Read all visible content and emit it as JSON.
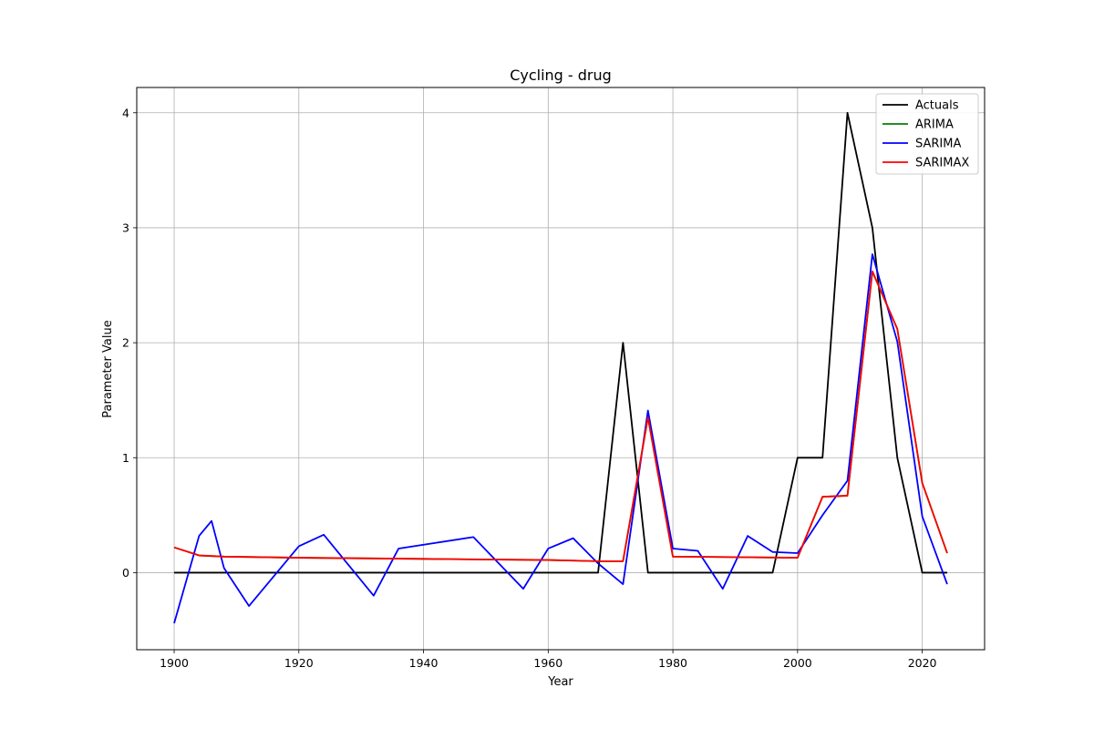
{
  "chart_data": {
    "type": "line",
    "title": "Cycling - drug",
    "xlabel": "Year",
    "ylabel": "Parameter Value",
    "xlim": [
      1894,
      2030
    ],
    "ylim": [
      -0.67,
      4.22
    ],
    "xticks": [
      1900,
      1920,
      1940,
      1960,
      1980,
      2000,
      2020
    ],
    "yticks": [
      0,
      1,
      2,
      3,
      4
    ],
    "grid": true,
    "legend_position": "upper right",
    "series": [
      {
        "name": "Actuals",
        "color": "#000000",
        "points": [
          [
            1900,
            0
          ],
          [
            1968,
            0
          ],
          [
            1972,
            2
          ],
          [
            1976,
            0
          ],
          [
            1996,
            0
          ],
          [
            2000,
            1
          ],
          [
            2004,
            1
          ],
          [
            2008,
            4
          ],
          [
            2012,
            3
          ],
          [
            2016,
            1
          ],
          [
            2020,
            0
          ],
          [
            2024,
            0
          ]
        ]
      },
      {
        "name": "ARIMA",
        "color": "#008000",
        "points": [
          [
            1900,
            0.22
          ],
          [
            1904,
            0.15
          ],
          [
            1908,
            0.14
          ],
          [
            1920,
            0.13
          ],
          [
            1940,
            0.12
          ],
          [
            1960,
            0.11
          ],
          [
            1968,
            0.1
          ],
          [
            1972,
            0.1
          ],
          [
            1976,
            1.35
          ],
          [
            1980,
            0.14
          ],
          [
            2000,
            0.13
          ],
          [
            2004,
            0.66
          ],
          [
            2008,
            0.67
          ],
          [
            2012,
            2.62
          ],
          [
            2016,
            2.12
          ],
          [
            2020,
            0.78
          ],
          [
            2024,
            0.17
          ]
        ]
      },
      {
        "name": "SARIMA",
        "color": "#0000ff",
        "points": [
          [
            1900,
            -0.44
          ],
          [
            1904,
            0.32
          ],
          [
            1906,
            0.45
          ],
          [
            1908,
            0.04
          ],
          [
            1912,
            -0.29
          ],
          [
            1920,
            0.23
          ],
          [
            1924,
            0.33
          ],
          [
            1932,
            -0.2
          ],
          [
            1936,
            0.21
          ],
          [
            1948,
            0.31
          ],
          [
            1956,
            -0.14
          ],
          [
            1960,
            0.21
          ],
          [
            1964,
            0.3
          ],
          [
            1968,
            0.08
          ],
          [
            1972,
            -0.1
          ],
          [
            1976,
            1.41
          ],
          [
            1980,
            0.21
          ],
          [
            1984,
            0.19
          ],
          [
            1988,
            -0.14
          ],
          [
            1992,
            0.32
          ],
          [
            1996,
            0.18
          ],
          [
            2000,
            0.17
          ],
          [
            2004,
            0.5
          ],
          [
            2008,
            0.8
          ],
          [
            2012,
            2.77
          ],
          [
            2016,
            2.01
          ],
          [
            2020,
            0.49
          ],
          [
            2024,
            -0.1
          ]
        ]
      },
      {
        "name": "SARIMAX",
        "color": "#ff0000",
        "points": [
          [
            1900,
            0.22
          ],
          [
            1904,
            0.15
          ],
          [
            1908,
            0.14
          ],
          [
            1920,
            0.13
          ],
          [
            1940,
            0.12
          ],
          [
            1960,
            0.11
          ],
          [
            1968,
            0.1
          ],
          [
            1972,
            0.1
          ],
          [
            1976,
            1.35
          ],
          [
            1980,
            0.14
          ],
          [
            2000,
            0.13
          ],
          [
            2004,
            0.66
          ],
          [
            2008,
            0.67
          ],
          [
            2012,
            2.62
          ],
          [
            2016,
            2.12
          ],
          [
            2020,
            0.78
          ],
          [
            2024,
            0.17
          ]
        ]
      }
    ]
  }
}
